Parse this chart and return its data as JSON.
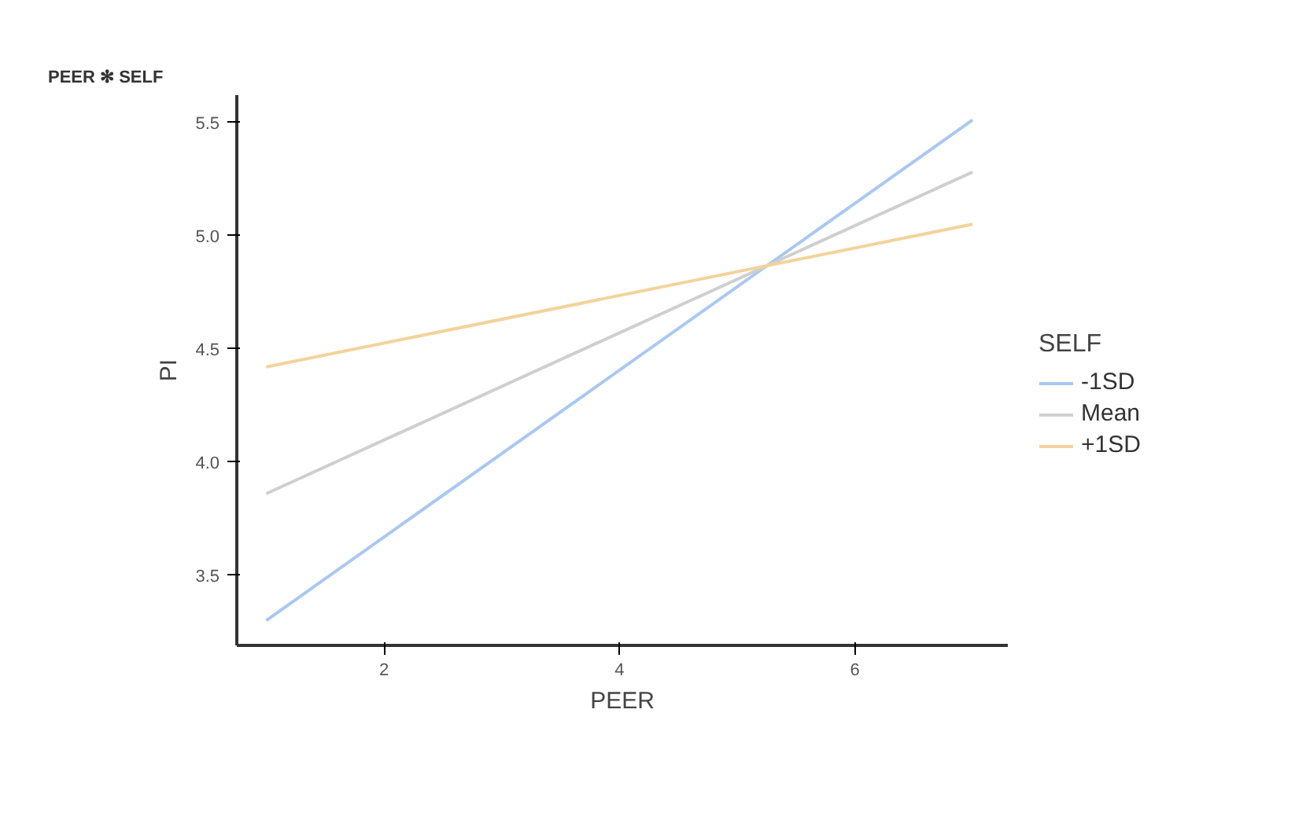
{
  "chart_data": {
    "type": "line",
    "title": "PEER ✻ SELF",
    "xlabel": "PEER",
    "ylabel": "PI",
    "legend_title": "SELF",
    "legend": "right",
    "grid": false,
    "marker": "none",
    "line_style": "solid",
    "x": [
      1,
      7
    ],
    "series": [
      {
        "name": "-1SD",
        "color": "#a9c8f0",
        "values": [
          3.3,
          5.51
        ]
      },
      {
        "name": "Mean",
        "color": "#cfcfcf",
        "values": [
          3.86,
          5.28
        ]
      },
      {
        "name": "+1SD",
        "color": "#f3d39b",
        "values": [
          4.42,
          5.05
        ]
      }
    ],
    "xlim": [
      0.75,
      7.3
    ],
    "ylim": [
      3.19,
      5.62
    ],
    "xticks": [
      2,
      4,
      6
    ],
    "yticks": [
      3.5,
      {
        "value": 4,
        "label": "4.0"
      },
      4.5,
      {
        "value": 5,
        "label": "5.0"
      },
      5.5
    ]
  }
}
